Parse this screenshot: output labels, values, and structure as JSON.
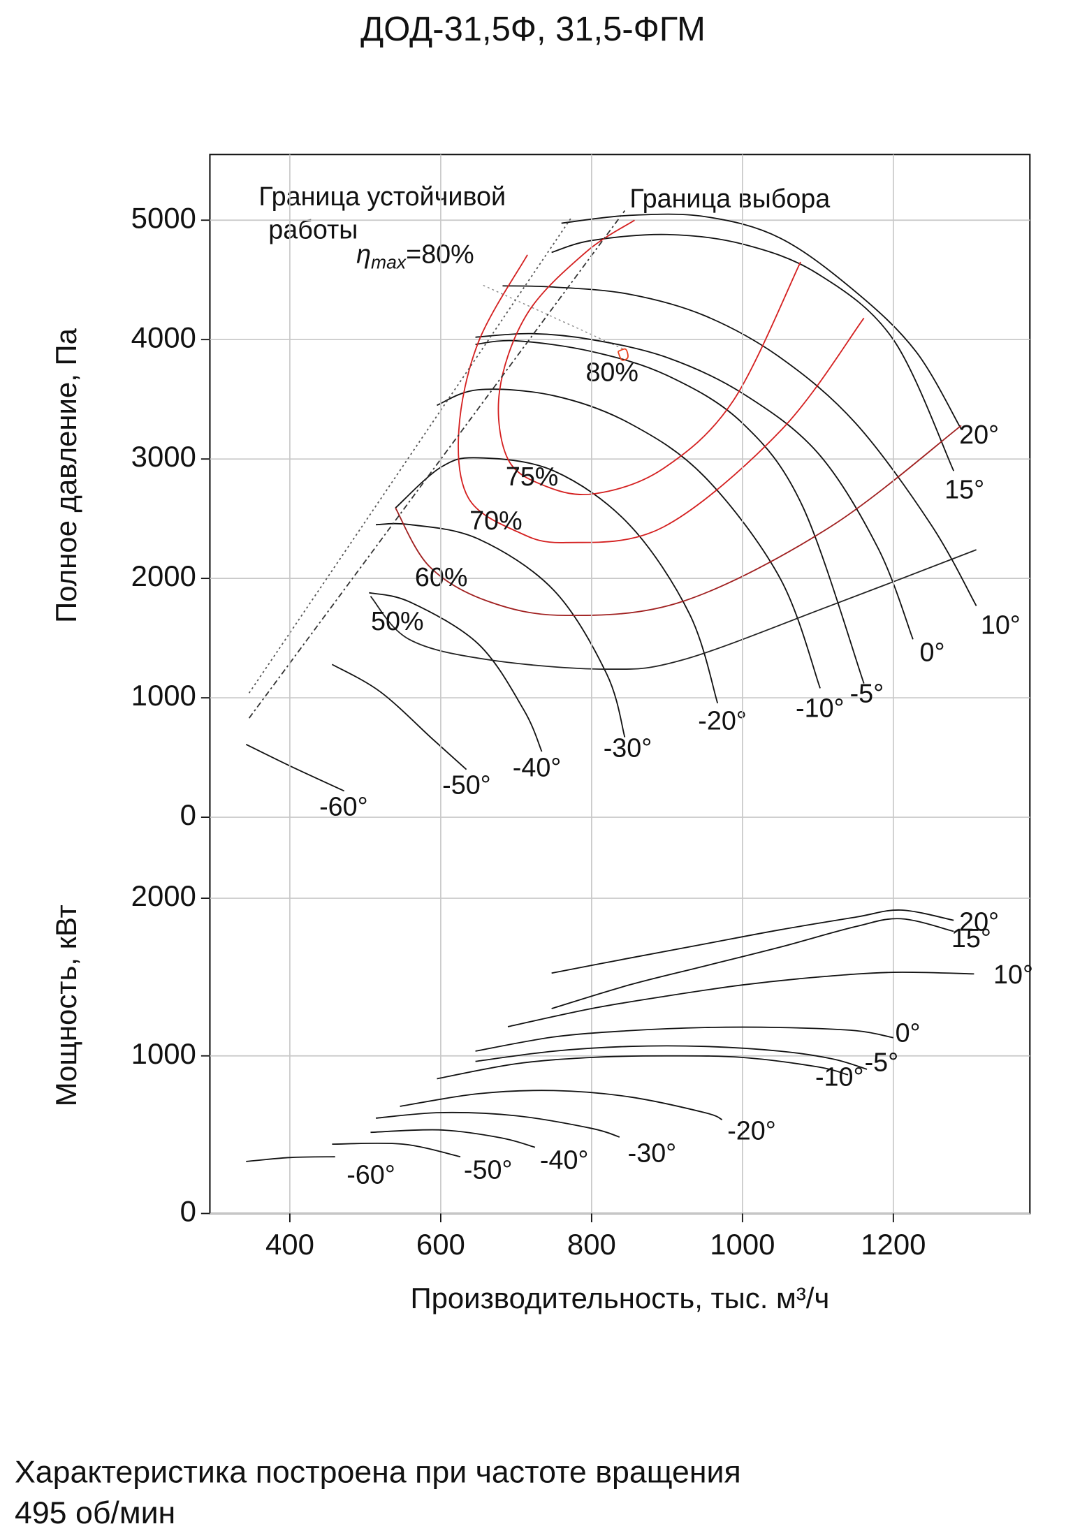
{
  "chart_data": [
    {
      "type": "line",
      "title": "ДОД-31,5Ф, 31,5-ФГМ",
      "ylabel": "Полное давление, Па",
      "xlim": [
        294,
        1381
      ],
      "ylim": [
        0,
        5550
      ],
      "yticks": [
        0,
        1000,
        2000,
        3000,
        4000,
        5000
      ],
      "grid": true,
      "annotations": [
        "Граница устойчивой",
        "работы",
        "Граница выбора"
      ],
      "eta_label": [
        "η",
        "max",
        "=80%"
      ],
      "series": [
        {
          "name": "20°",
          "color": "#111111",
          "x": [
            760,
            850,
            950,
            1050,
            1150,
            1230,
            1290
          ],
          "y": [
            4975,
            5040,
            5030,
            4850,
            4400,
            3900,
            3250
          ]
        },
        {
          "name": "15°",
          "color": "#111111",
          "x": [
            747,
            800,
            900,
            1000,
            1100,
            1200,
            1280
          ],
          "y": [
            4730,
            4830,
            4880,
            4800,
            4550,
            4000,
            2900
          ]
        },
        {
          "name": "10°",
          "color": "#111111",
          "x": [
            682,
            750,
            850,
            950,
            1050,
            1150,
            1250,
            1310
          ],
          "y": [
            4450,
            4440,
            4380,
            4200,
            3850,
            3300,
            2450,
            1770
          ]
        },
        {
          "name": "0°",
          "color": "#111111",
          "x": [
            646,
            720,
            800,
            900,
            1000,
            1100,
            1180,
            1226
          ],
          "y": [
            4020,
            4050,
            4000,
            3850,
            3550,
            3050,
            2250,
            1490
          ]
        },
        {
          "name": "-5°",
          "color": "#111111",
          "x": [
            646,
            700,
            800,
            900,
            1000,
            1080,
            1161
          ],
          "y": [
            3960,
            3990,
            3900,
            3700,
            3300,
            2600,
            1120
          ]
        },
        {
          "name": "-10°",
          "color": "#111111",
          "x": [
            595,
            650,
            750,
            850,
            950,
            1050,
            1103
          ],
          "y": [
            3450,
            3580,
            3530,
            3300,
            2850,
            2000,
            1080
          ]
        },
        {
          "name": "-20°",
          "color": "#111111",
          "x": [
            540,
            600,
            650,
            750,
            850,
            930,
            967
          ],
          "y": [
            2590,
            2930,
            3010,
            2900,
            2450,
            1700,
            955
          ]
        },
        {
          "name": "-30°",
          "color": "#111111",
          "x": [
            514,
            560,
            650,
            750,
            820,
            844
          ],
          "y": [
            2450,
            2450,
            2330,
            1900,
            1200,
            670
          ]
        },
        {
          "name": "-40°",
          "color": "#111111",
          "x": [
            505,
            560,
            650,
            710,
            734
          ],
          "y": [
            1880,
            1800,
            1450,
            900,
            550
          ]
        },
        {
          "name": "-50°",
          "color": "#111111",
          "x": [
            456,
            520,
            590,
            634
          ],
          "y": [
            1280,
            1050,
            650,
            400
          ]
        },
        {
          "name": "-60°",
          "color": "#111111",
          "x": [
            342,
            400,
            472
          ],
          "y": [
            610,
            430,
            220
          ]
        },
        {
          "name": "80%",
          "color": "#e8401c",
          "x": [
            835,
            845,
            848,
            840,
            835
          ],
          "y": [
            3900,
            3920,
            3850,
            3830,
            3900
          ]
        },
        {
          "name": "75%",
          "color": "#d42020",
          "x": [
            857,
            792,
            715,
            678,
            689,
            740,
            805,
            895,
            988,
            1077
          ],
          "y": [
            5000,
            4730,
            4220,
            3570,
            3000,
            2770,
            2710,
            2920,
            3490,
            4650
          ]
        },
        {
          "name": "70%",
          "color": "#d42020",
          "x": [
            715,
            650,
            624,
            637,
            702,
            766,
            895,
            1051,
            1161
          ],
          "y": [
            4710,
            3980,
            3240,
            2670,
            2390,
            2300,
            2430,
            3240,
            4180
          ]
        },
        {
          "name": "60%",
          "color": "#a02020",
          "x": [
            540,
            585,
            662,
            766,
            922,
            1116,
            1290
          ],
          "y": [
            2590,
            2100,
            1810,
            1690,
            1810,
            2430,
            3280
          ]
        },
        {
          "name": "50%",
          "color": "#222222",
          "x": [
            507,
            558,
            662,
            818,
            922,
            1116,
            1310
          ],
          "y": [
            1850,
            1490,
            1320,
            1240,
            1320,
            1770,
            2240
          ]
        },
        {
          "color": "#555555",
          "dash": "2 3",
          "x": [
            346,
            773
          ],
          "y": [
            1040,
            5020
          ]
        },
        {
          "color": "#333333",
          "dash": "6 3 2 3",
          "x": [
            346,
            844
          ],
          "y": [
            830,
            5080
          ]
        }
      ]
    },
    {
      "type": "line",
      "ylabel": "Мощность, кВт",
      "xlabel": "Производительность, тыс. м³/ч",
      "xlim": [
        294,
        1381
      ],
      "ylim": [
        0,
        2000
      ],
      "xticks": [
        400,
        600,
        800,
        1000,
        1200
      ],
      "yticks": [
        0,
        1000,
        2000
      ],
      "grid": true,
      "series": [
        {
          "name": "20°",
          "color": "#111111",
          "x": [
            747,
            850,
            950,
            1050,
            1150,
            1210,
            1280
          ],
          "y": [
            1525,
            1620,
            1710,
            1800,
            1880,
            1925,
            1860
          ]
        },
        {
          "name": "15°",
          "color": "#111111",
          "x": [
            747,
            850,
            950,
            1050,
            1150,
            1210,
            1280
          ],
          "y": [
            1300,
            1450,
            1570,
            1690,
            1820,
            1870,
            1790
          ]
        },
        {
          "name": "10°",
          "color": "#111111",
          "x": [
            689,
            800,
            900,
            1000,
            1100,
            1200,
            1307
          ],
          "y": [
            1185,
            1300,
            1380,
            1450,
            1500,
            1530,
            1520
          ]
        },
        {
          "name": "0°",
          "color": "#111111",
          "x": [
            646,
            750,
            850,
            950,
            1050,
            1150,
            1200
          ],
          "y": [
            1030,
            1120,
            1160,
            1180,
            1180,
            1160,
            1115
          ]
        },
        {
          "name": "-5°",
          "color": "#111111",
          "x": [
            646,
            750,
            850,
            950,
            1050,
            1120,
            1165
          ],
          "y": [
            965,
            1030,
            1060,
            1060,
            1030,
            980,
            915
          ]
        },
        {
          "name": "-10°",
          "color": "#111111",
          "x": [
            595,
            700,
            800,
            900,
            1000,
            1100,
            1140
          ],
          "y": [
            855,
            950,
            990,
            1000,
            990,
            930,
            880
          ]
        },
        {
          "name": "-20°",
          "color": "#111111",
          "x": [
            546,
            650,
            750,
            850,
            950,
            973
          ],
          "y": [
            680,
            760,
            780,
            740,
            640,
            595
          ]
        },
        {
          "name": "-30°",
          "color": "#111111",
          "x": [
            514,
            600,
            700,
            800,
            837
          ],
          "y": [
            605,
            640,
            620,
            540,
            485
          ]
        },
        {
          "name": "-40°",
          "color": "#111111",
          "x": [
            507,
            600,
            680,
            725
          ],
          "y": [
            515,
            530,
            480,
            420
          ]
        },
        {
          "name": "-50°",
          "color": "#111111",
          "x": [
            456,
            550,
            626
          ],
          "y": [
            440,
            440,
            360
          ]
        },
        {
          "name": "-60°",
          "color": "#111111",
          "x": [
            342,
            400,
            460
          ],
          "y": [
            330,
            355,
            360
          ]
        }
      ]
    }
  ],
  "footer": [
    "Характеристика построена при частоте вращения",
    "495 об/мин"
  ]
}
